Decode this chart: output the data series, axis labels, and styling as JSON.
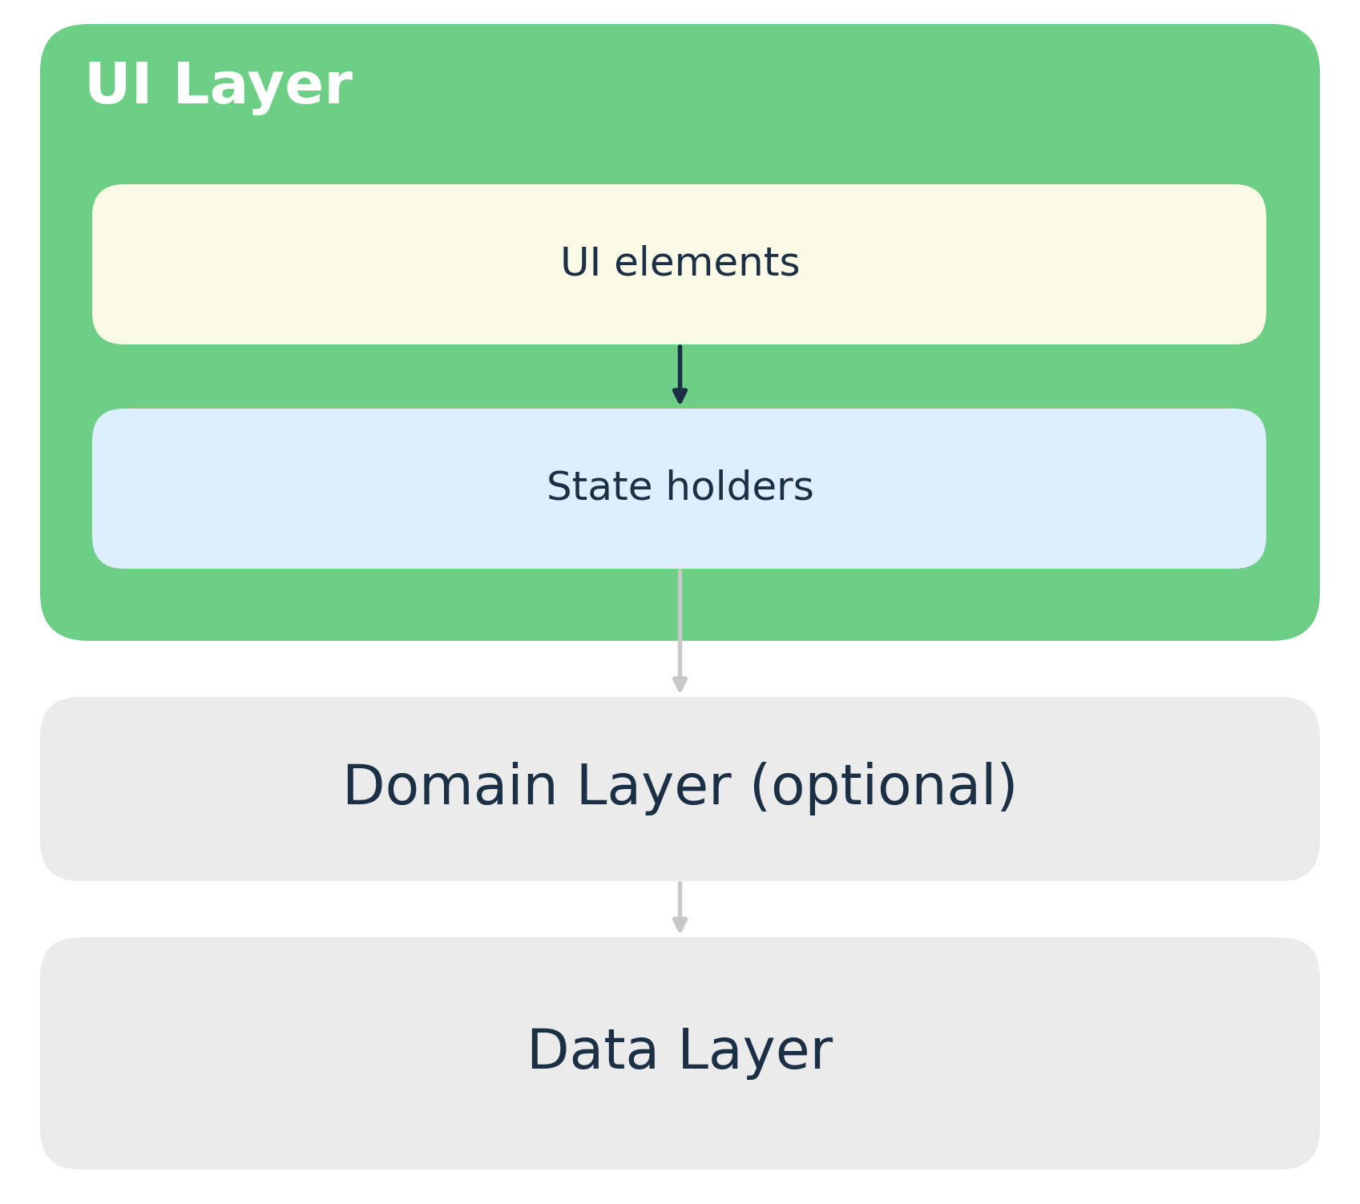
{
  "background_color": "#ffffff",
  "ui_layer_bg": "#6dcf85",
  "ui_layer_title": "UI Layer",
  "ui_layer_title_color": "#ffffff",
  "ui_layer_title_fontsize": 52,
  "ui_elements_bg": "#fafae6",
  "ui_elements_text": "UI elements",
  "ui_elements_text_color": "#1b2f45",
  "ui_elements_fontsize": 36,
  "state_holders_bg": "#ddeeff",
  "state_holders_text": "State holders",
  "state_holders_text_color": "#1b2f45",
  "state_holders_fontsize": 36,
  "domain_layer_bg": "#ebebeb",
  "domain_layer_text": "Domain Layer (optional)",
  "domain_layer_text_color": "#1b2f45",
  "domain_layer_fontsize": 50,
  "data_layer_bg": "#ebebeb",
  "data_layer_text": "Data Layer",
  "data_layer_text_color": "#1b2f45",
  "data_layer_fontsize": 50,
  "dark_arrow_color": "#1b2f45",
  "light_arrow_color": "#c8c8c8",
  "arrow_lw": 4.0,
  "fig_w": 16.97,
  "fig_h": 15.03,
  "dpi": 100
}
